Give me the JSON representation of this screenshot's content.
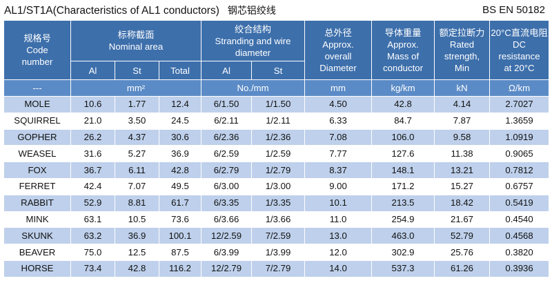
{
  "title": {
    "main": "AL1/ST1A(Characteristics of AL1 conductors)",
    "chinese": "钢芯铝绞线",
    "standard": "BS EN 50182"
  },
  "header": {
    "code": [
      "规格号",
      "Code",
      "number"
    ],
    "nominal_area": [
      "标称截面",
      "Nominal area"
    ],
    "stranding": [
      "绞合结构",
      "Stranding and wire",
      "diameter"
    ],
    "overall_diameter": [
      "总外径",
      "Approx.",
      "overall",
      "Diameter"
    ],
    "mass": [
      "导体重量",
      "Approx.",
      "Mass of",
      "conductor"
    ],
    "strength": [
      "额定拉断力",
      "Rated",
      "strength,",
      "Min"
    ],
    "resistance": [
      "20°C直流电阻",
      "DC",
      "resistance",
      "at 20°C"
    ],
    "sub": {
      "al": "Al",
      "st": "St",
      "total": "Total",
      "st_al": "Al",
      "st_st": "St"
    },
    "units": {
      "code": "---",
      "area": "mm²",
      "stranding": "No./mm",
      "diameter": "mm",
      "mass": "kg/km",
      "strength": "kN",
      "resistance": "Ω/km"
    }
  },
  "rows": [
    {
      "code": "MOLE",
      "al": "10.6",
      "st": "1.77",
      "total": "12.4",
      "al_str": "6/1.50",
      "st_str": "1/1.50",
      "dia": "4.50",
      "mass": "42.8",
      "strength": "4.14",
      "res": "2.7027"
    },
    {
      "code": "SQUIRREL",
      "al": "21.0",
      "st": "3.50",
      "total": "24.5",
      "al_str": "6/2.11",
      "st_str": "1/2.11",
      "dia": "6.33",
      "mass": "84.7",
      "strength": "7.87",
      "res": "1.3659"
    },
    {
      "code": "GOPHER",
      "al": "26.2",
      "st": "4.37",
      "total": "30.6",
      "al_str": "6/2.36",
      "st_str": "1/2.36",
      "dia": "7.08",
      "mass": "106.0",
      "strength": "9.58",
      "res": "1.0919"
    },
    {
      "code": "WEASEL",
      "al": "31.6",
      "st": "5.27",
      "total": "36.9",
      "al_str": "6/2.59",
      "st_str": "1/2.59",
      "dia": "7.77",
      "mass": "127.6",
      "strength": "11.38",
      "res": "0.9065"
    },
    {
      "code": "FOX",
      "al": "36.7",
      "st": "6.11",
      "total": "42.8",
      "al_str": "6/2.79",
      "st_str": "1/2.79",
      "dia": "8.37",
      "mass": "148.1",
      "strength": "13.21",
      "res": "0.7812"
    },
    {
      "code": "FERRET",
      "al": "42.4",
      "st": "7.07",
      "total": "49.5",
      "al_str": "6/3.00",
      "st_str": "1/3.00",
      "dia": "9.00",
      "mass": "171.2",
      "strength": "15.27",
      "res": "0.6757"
    },
    {
      "code": "RABBIT",
      "al": "52.9",
      "st": "8.81",
      "total": "61.7",
      "al_str": "6/3.35",
      "st_str": "1/3.35",
      "dia": "10.1",
      "mass": "213.5",
      "strength": "18.42",
      "res": "0.5419"
    },
    {
      "code": "MINK",
      "al": "63.1",
      "st": "10.5",
      "total": "73.6",
      "al_str": "6/3.66",
      "st_str": "1/3.66",
      "dia": "11.0",
      "mass": "254.9",
      "strength": "21.67",
      "res": "0.4540"
    },
    {
      "code": "SKUNK",
      "al": "63.2",
      "st": "36.9",
      "total": "100.1",
      "al_str": "12/2.59",
      "st_str": "7/2.59",
      "dia": "13.0",
      "mass": "463.0",
      "strength": "52.79",
      "res": "0.4568"
    },
    {
      "code": "BEAVER",
      "al": "75.0",
      "st": "12.5",
      "total": "87.5",
      "al_str": "6/3.99",
      "st_str": "1/3.99",
      "dia": "12.0",
      "mass": "302.9",
      "strength": "25.76",
      "res": "0.3820"
    },
    {
      "code": "HORSE",
      "al": "73.4",
      "st": "42.8",
      "total": "116.2",
      "al_str": "12/2.79",
      "st_str": "7/2.79",
      "dia": "14.0",
      "mass": "537.3",
      "strength": "61.26",
      "res": "0.3936"
    }
  ],
  "colors": {
    "header_bg": "#3d6fab",
    "unit_row_bg": "#5b8bc6",
    "stripe_bg": "#bed0eb",
    "white": "#ffffff"
  }
}
